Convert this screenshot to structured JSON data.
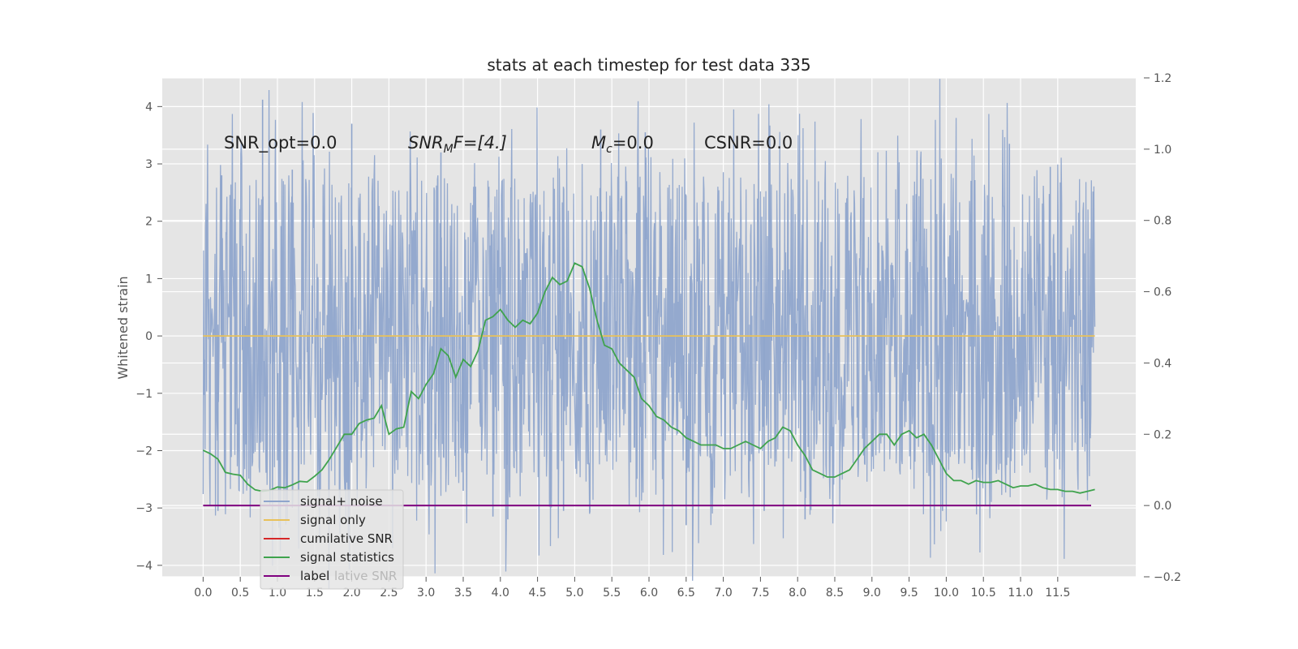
{
  "chart_data": {
    "type": "line",
    "title": "stats at each timestep for test data 335",
    "xlabel": "",
    "ylabel": "Whitened strain",
    "y2label": "",
    "xlim": [
      -0.55,
      12.55
    ],
    "ylim": [
      -4.2,
      4.5
    ],
    "y2lim": [
      -0.2,
      1.2
    ],
    "grid": true,
    "background": "#e5e5e5",
    "x_ticks": [
      "0.0",
      "0.5",
      "1.0",
      "1.5",
      "2.0",
      "2.5",
      "3.0",
      "3.5",
      "4.0",
      "4.5",
      "5.0",
      "5.5",
      "6.0",
      "6.5",
      "7.0",
      "7.5",
      "8.0",
      "8.5",
      "9.0",
      "9.5",
      "10.0",
      "10.5",
      "11.0",
      "11.5"
    ],
    "y_ticks": [
      "4",
      "3",
      "2",
      "1",
      "0",
      "−1",
      "−2",
      "−3",
      "−4"
    ],
    "y2_ticks": [
      "1.2",
      "1.0",
      "0.8",
      "0.6",
      "0.4",
      "0.2",
      "0.0",
      "−0.2"
    ],
    "annotations": {
      "snr_opt": "SNR_opt=0.0",
      "snr_mf_main": "SNR",
      "snr_mf_sub": "M",
      "snr_mf_rest": "F=[4.]",
      "mc_main": "M",
      "mc_sub": "c",
      "mc_rest": "=0.0",
      "csnr": "CSNR=0.0"
    },
    "legend": {
      "placement": "lower-left",
      "entries": [
        "signal+ noise",
        "signal only",
        "cumilative SNR",
        "signal statistics",
        "label"
      ],
      "ghost_text": "lative SNR"
    },
    "series": [
      {
        "name": "signal+ noise",
        "color": "#8fa5cc",
        "axis": "left",
        "x_range": [
          0.0,
          12.0
        ],
        "envelope_upper": 2.3,
        "envelope_lower": -1.9,
        "spikes": [
          [
            0.8,
            4.12
          ],
          [
            2.0,
            3.7
          ],
          [
            0.25,
            2.8
          ],
          [
            1.2,
            2.9
          ],
          [
            3.2,
            3.2
          ],
          [
            5.35,
            3.6
          ],
          [
            5.95,
            3.55
          ],
          [
            10.85,
            3.35
          ],
          [
            11.4,
            2.95
          ],
          [
            3.5,
            -2.7
          ],
          [
            3.9,
            -3.15
          ],
          [
            4.1,
            -3.2
          ],
          [
            4.85,
            -3.05
          ],
          [
            6.5,
            -3.3
          ],
          [
            7.55,
            -3.05
          ],
          [
            8.1,
            -3.2
          ],
          [
            9.95,
            -3.05
          ],
          [
            2.55,
            -3.7
          ],
          [
            0.2,
            -3.05
          ],
          [
            0.9,
            -2.95
          ]
        ]
      },
      {
        "name": "signal only",
        "color": "#e8c15a",
        "axis": "left",
        "x": [
          0.0,
          12.0
        ],
        "y": [
          0.0,
          0.0
        ]
      },
      {
        "name": "cumilative SNR",
        "color": "#d62728",
        "axis": "right",
        "x": [],
        "y": []
      },
      {
        "name": "signal statistics",
        "color": "#3fa34d",
        "axis": "right",
        "x": [
          0.0,
          0.1,
          0.2,
          0.3,
          0.4,
          0.5,
          0.6,
          0.7,
          0.8,
          0.9,
          1.0,
          1.1,
          1.2,
          1.3,
          1.4,
          1.5,
          1.6,
          1.7,
          1.8,
          1.9,
          2.0,
          2.1,
          2.2,
          2.3,
          2.4,
          2.5,
          2.6,
          2.7,
          2.8,
          2.9,
          3.0,
          3.1,
          3.2,
          3.3,
          3.4,
          3.5,
          3.6,
          3.7,
          3.8,
          3.9,
          4.0,
          4.1,
          4.2,
          4.3,
          4.4,
          4.5,
          4.6,
          4.7,
          4.8,
          4.9,
          5.0,
          5.1,
          5.2,
          5.3,
          5.4,
          5.5,
          5.6,
          5.7,
          5.8,
          5.9,
          6.0,
          6.1,
          6.2,
          6.3,
          6.4,
          6.5,
          6.6,
          6.7,
          6.8,
          6.9,
          7.0,
          7.1,
          7.2,
          7.3,
          7.4,
          7.5,
          7.6,
          7.7,
          7.8,
          7.9,
          8.0,
          8.1,
          8.2,
          8.3,
          8.4,
          8.5,
          8.6,
          8.7,
          8.8,
          8.9,
          9.0,
          9.1,
          9.2,
          9.3,
          9.4,
          9.5,
          9.6,
          9.7,
          9.8,
          9.9,
          10.0,
          10.1,
          10.2,
          10.3,
          10.4,
          10.5,
          10.6,
          10.7,
          10.8,
          10.9,
          11.0,
          11.1,
          11.2,
          11.3,
          11.4,
          11.5,
          11.6,
          11.7,
          11.8,
          11.9,
          12.0
        ],
        "y": [
          0.155,
          0.145,
          0.13,
          0.093,
          0.088,
          0.085,
          0.06,
          0.044,
          0.04,
          0.043,
          0.052,
          0.05,
          0.058,
          0.068,
          0.066,
          0.082,
          0.1,
          0.13,
          0.165,
          0.2,
          0.2,
          0.23,
          0.24,
          0.245,
          0.28,
          0.2,
          0.215,
          0.22,
          0.32,
          0.3,
          0.34,
          0.37,
          0.44,
          0.42,
          0.36,
          0.41,
          0.39,
          0.435,
          0.52,
          0.53,
          0.55,
          0.52,
          0.5,
          0.52,
          0.51,
          0.54,
          0.6,
          0.64,
          0.62,
          0.63,
          0.68,
          0.67,
          0.61,
          0.52,
          0.45,
          0.44,
          0.4,
          0.38,
          0.36,
          0.3,
          0.28,
          0.25,
          0.24,
          0.22,
          0.21,
          0.19,
          0.18,
          0.17,
          0.17,
          0.17,
          0.16,
          0.16,
          0.17,
          0.18,
          0.17,
          0.16,
          0.18,
          0.19,
          0.22,
          0.21,
          0.17,
          0.14,
          0.1,
          0.09,
          0.08,
          0.08,
          0.09,
          0.1,
          0.13,
          0.16,
          0.18,
          0.2,
          0.2,
          0.17,
          0.2,
          0.21,
          0.19,
          0.2,
          0.17,
          0.13,
          0.09,
          0.07,
          0.07,
          0.06,
          0.07,
          0.065,
          0.065,
          0.07,
          0.06,
          0.05,
          0.055,
          0.055,
          0.06,
          0.05,
          0.045,
          0.045,
          0.04,
          0.04,
          0.035,
          0.04,
          0.045
        ],
        "x_max": 11.95
      },
      {
        "name": "label",
        "color": "#800080",
        "axis": "right",
        "x": [
          0.0,
          11.95
        ],
        "y": [
          0.0,
          0.0
        ]
      }
    ]
  }
}
